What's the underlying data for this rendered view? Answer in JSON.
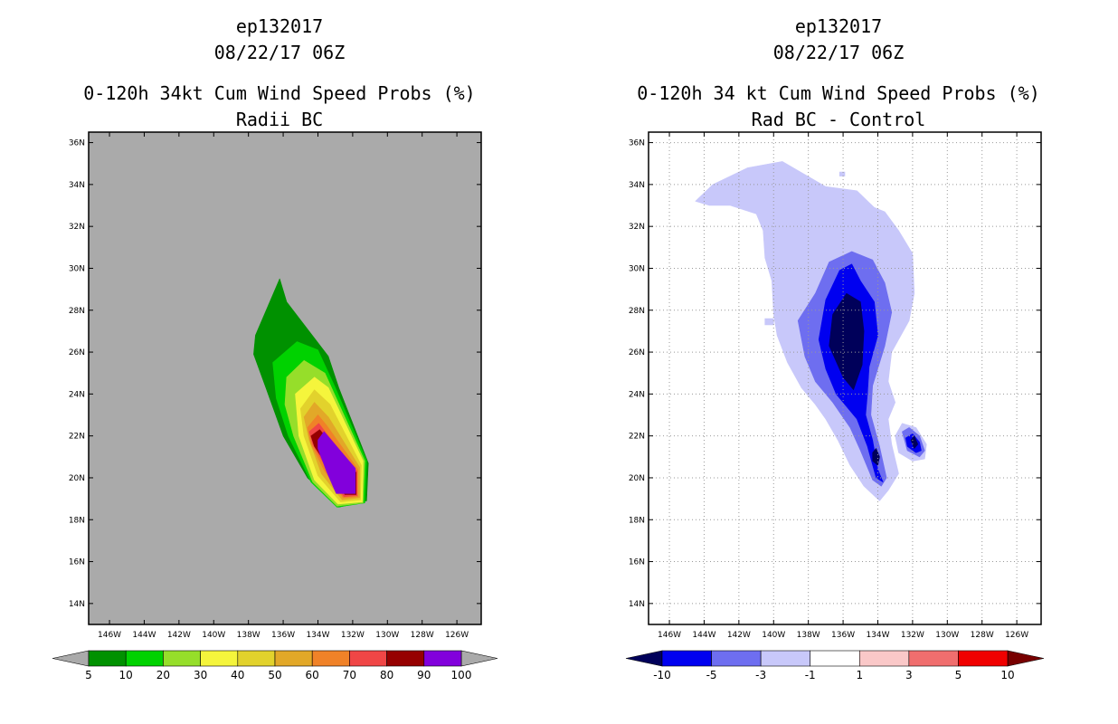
{
  "chart_data": [
    {
      "type": "heatmap",
      "id": "left",
      "title_lines": [
        "ep132017",
        "08/22/17 06Z",
        "0-120h 34kt Cum Wind Speed Probs (%)",
        "Radii BC"
      ],
      "x_ticks": [
        "146W",
        "144W",
        "142W",
        "140W",
        "138W",
        "136W",
        "134W",
        "132W",
        "130W",
        "128W",
        "126W"
      ],
      "x_tick_values": [
        -146,
        -144,
        -142,
        -140,
        -138,
        -136,
        -134,
        -132,
        -130,
        -128,
        -126
      ],
      "y_ticks": [
        "36N",
        "34N",
        "32N",
        "30N",
        "28N",
        "26N",
        "24N",
        "22N",
        "20N",
        "18N",
        "16N",
        "14N"
      ],
      "y_tick_values": [
        36,
        34,
        32,
        30,
        28,
        26,
        24,
        22,
        20,
        18,
        16,
        14
      ],
      "xlim": [
        -147.2,
        -124.6
      ],
      "ylim": [
        13.0,
        36.5
      ],
      "grid": false,
      "background_color": "#aaaaaa",
      "colorbar": {
        "labels": [
          "5",
          "10",
          "20",
          "30",
          "40",
          "50",
          "60",
          "70",
          "80",
          "90",
          "100"
        ],
        "colors": [
          "#009100",
          "#00d200",
          "#96de2a",
          "#f5f53c",
          "#e2d22c",
          "#e2a828",
          "#f08228",
          "#f04646",
          "#960000",
          "#8200dc"
        ],
        "end_color": "#aaaaaa"
      },
      "contours": [
        {
          "level": 5,
          "color": "#009100",
          "points": [
            [
              -137.6,
              26.8
            ],
            [
              -136.2,
              29.5
            ],
            [
              -135.8,
              28.4
            ],
            [
              -133.4,
              25.8
            ],
            [
              -132.8,
              24.3
            ],
            [
              -131.1,
              20.7
            ],
            [
              -131.2,
              18.9
            ],
            [
              -132.8,
              18.6
            ],
            [
              -134.6,
              20.0
            ],
            [
              -136.0,
              22.0
            ],
            [
              -137.0,
              24.3
            ],
            [
              -137.7,
              25.9
            ]
          ]
        },
        {
          "level": 10,
          "color": "#00d200",
          "points": [
            [
              -136.6,
              25.5
            ],
            [
              -135.2,
              26.5
            ],
            [
              -134.0,
              26.1
            ],
            [
              -133.0,
              24.3
            ],
            [
              -131.2,
              20.8
            ],
            [
              -131.3,
              18.8
            ],
            [
              -132.9,
              18.6
            ],
            [
              -134.4,
              19.8
            ],
            [
              -135.7,
              22.0
            ],
            [
              -136.4,
              23.8
            ]
          ]
        },
        {
          "level": 20,
          "color": "#96de2a",
          "points": [
            [
              -135.8,
              24.8
            ],
            [
              -134.8,
              25.6
            ],
            [
              -133.6,
              25.0
            ],
            [
              -131.3,
              20.8
            ],
            [
              -131.4,
              18.8
            ],
            [
              -132.9,
              18.65
            ],
            [
              -134.3,
              19.8
            ],
            [
              -135.4,
              22.0
            ],
            [
              -135.9,
              23.5
            ]
          ]
        },
        {
          "level": 30,
          "color": "#f5f53c",
          "points": [
            [
              -135.3,
              24.0
            ],
            [
              -134.2,
              24.8
            ],
            [
              -133.4,
              24.3
            ],
            [
              -131.4,
              20.8
            ],
            [
              -131.45,
              18.85
            ],
            [
              -132.85,
              18.75
            ],
            [
              -134.2,
              19.9
            ],
            [
              -135.1,
              22.0
            ]
          ]
        },
        {
          "level": 40,
          "color": "#e2d22c",
          "points": [
            [
              -135.0,
              23.3
            ],
            [
              -134.2,
              24.2
            ],
            [
              -133.3,
              23.5
            ],
            [
              -131.5,
              20.6
            ],
            [
              -131.55,
              18.95
            ],
            [
              -132.7,
              18.85
            ],
            [
              -134.0,
              20.1
            ],
            [
              -134.8,
              22.0
            ]
          ]
        },
        {
          "level": 50,
          "color": "#e2a828",
          "points": [
            [
              -134.8,
              22.9
            ],
            [
              -134.2,
              23.6
            ],
            [
              -133.4,
              22.9
            ],
            [
              -131.6,
              20.5
            ],
            [
              -131.6,
              19.05
            ],
            [
              -132.6,
              18.95
            ],
            [
              -133.8,
              20.2
            ],
            [
              -134.5,
              21.8
            ]
          ]
        },
        {
          "level": 60,
          "color": "#f08228",
          "points": [
            [
              -134.6,
              22.4
            ],
            [
              -134.0,
              23.0
            ],
            [
              -133.5,
              22.5
            ],
            [
              -131.7,
              20.4
            ],
            [
              -131.7,
              19.1
            ],
            [
              -132.55,
              19.05
            ],
            [
              -133.6,
              20.3
            ],
            [
              -134.4,
              21.6
            ]
          ]
        },
        {
          "level": 70,
          "color": "#f04646",
          "points": [
            [
              -134.5,
              22.2
            ],
            [
              -133.95,
              22.6
            ],
            [
              -133.5,
              22.1
            ],
            [
              -131.75,
              20.3
            ],
            [
              -131.75,
              19.15
            ],
            [
              -132.5,
              19.1
            ],
            [
              -133.4,
              20.3
            ],
            [
              -134.3,
              21.6
            ]
          ]
        },
        {
          "level": 80,
          "color": "#960000",
          "points": [
            [
              -134.4,
              22.0
            ],
            [
              -133.9,
              22.3
            ],
            [
              -133.5,
              21.9
            ],
            [
              -131.8,
              20.25
            ],
            [
              -131.8,
              19.2
            ],
            [
              -132.45,
              19.2
            ],
            [
              -133.3,
              20.4
            ],
            [
              -134.2,
              21.5
            ]
          ]
        },
        {
          "level": 90,
          "color": "#8200dc",
          "points": [
            [
              -134.0,
              21.8
            ],
            [
              -133.65,
              22.2
            ],
            [
              -131.85,
              20.45
            ],
            [
              -131.85,
              19.25
            ],
            [
              -132.95,
              19.25
            ],
            [
              -133.5,
              20.3
            ],
            [
              -134.0,
              21.4
            ]
          ]
        }
      ]
    },
    {
      "type": "heatmap",
      "id": "right",
      "title_lines": [
        "ep132017",
        "08/22/17 06Z",
        "0-120h 34 kt Cum Wind Speed Probs (%)",
        "Rad BC - Control"
      ],
      "x_ticks": [
        "146W",
        "144W",
        "142W",
        "140W",
        "138W",
        "136W",
        "134W",
        "132W",
        "130W",
        "128W",
        "126W"
      ],
      "x_tick_values": [
        -146,
        -144,
        -142,
        -140,
        -138,
        -136,
        -134,
        -132,
        -130,
        -128,
        -126
      ],
      "y_ticks": [
        "36N",
        "34N",
        "32N",
        "30N",
        "28N",
        "26N",
        "24N",
        "22N",
        "20N",
        "18N",
        "16N",
        "14N"
      ],
      "y_tick_values": [
        36,
        34,
        32,
        30,
        28,
        26,
        24,
        22,
        20,
        18,
        16,
        14
      ],
      "xlim": [
        -147.2,
        -124.6
      ],
      "ylim": [
        13.0,
        36.5
      ],
      "grid": true,
      "background_color": "#ffffff",
      "colorbar": {
        "labels": [
          "-10",
          "-5",
          "-3",
          "-1",
          "1",
          "3",
          "5",
          "10"
        ],
        "colors": [
          "#0000f0",
          "#6e6ef0",
          "#c8c8fa",
          "#ffffff",
          "#fac8c8",
          "#f06e6e",
          "#f00000"
        ],
        "end_colors": [
          "#00005a",
          "#780000"
        ]
      },
      "contours": [
        {
          "level": -1,
          "color": "#c8c8fa",
          "points": [
            [
              -144.5,
              33.2
            ],
            [
              -143.5,
              34.0
            ],
            [
              -141.5,
              34.8
            ],
            [
              -139.5,
              35.1
            ],
            [
              -137.0,
              33.9
            ],
            [
              -135.2,
              33.7
            ],
            [
              -134.2,
              32.9
            ],
            [
              -133.6,
              32.7
            ],
            [
              -132.8,
              31.8
            ],
            [
              -132.0,
              30.7
            ],
            [
              -131.9,
              28.8
            ],
            [
              -132.2,
              27.5
            ],
            [
              -133.2,
              26.0
            ],
            [
              -133.4,
              24.6
            ],
            [
              -133.0,
              23.6
            ],
            [
              -133.4,
              22.8
            ],
            [
              -133.2,
              21.6
            ],
            [
              -132.8,
              20.2
            ],
            [
              -133.4,
              19.4
            ],
            [
              -133.9,
              18.9
            ],
            [
              -134.8,
              19.6
            ],
            [
              -135.6,
              20.6
            ],
            [
              -136.3,
              21.8
            ],
            [
              -137.0,
              22.8
            ],
            [
              -137.6,
              23.5
            ],
            [
              -138.4,
              24.3
            ],
            [
              -139.2,
              25.5
            ],
            [
              -139.8,
              26.8
            ],
            [
              -140.0,
              27.8
            ],
            [
              -140.1,
              29.4
            ],
            [
              -140.5,
              30.5
            ],
            [
              -140.6,
              31.8
            ],
            [
              -141.0,
              32.6
            ],
            [
              -142.5,
              33.0
            ],
            [
              -143.7,
              33.0
            ]
          ]
        },
        {
          "level": -1,
          "color": "#c8c8fa",
          "points": [
            [
              -133.0,
              22.0
            ],
            [
              -132.6,
              22.6
            ],
            [
              -131.8,
              22.4
            ],
            [
              -131.2,
              21.6
            ],
            [
              -131.3,
              20.9
            ],
            [
              -132.0,
              20.8
            ],
            [
              -132.8,
              21.2
            ]
          ]
        },
        {
          "level": -3,
          "color": "#6e6ef0",
          "points": [
            [
              -137.6,
              28.8
            ],
            [
              -136.8,
              30.3
            ],
            [
              -135.5,
              30.8
            ],
            [
              -134.3,
              30.4
            ],
            [
              -133.6,
              29.3
            ],
            [
              -133.2,
              27.9
            ],
            [
              -133.6,
              26.3
            ],
            [
              -134.3,
              24.4
            ],
            [
              -134.4,
              23.0
            ],
            [
              -133.9,
              21.5
            ],
            [
              -133.5,
              20.0
            ],
            [
              -133.8,
              19.6
            ],
            [
              -134.3,
              19.9
            ],
            [
              -135.0,
              21.3
            ],
            [
              -135.6,
              22.4
            ],
            [
              -136.6,
              23.6
            ],
            [
              -137.6,
              24.6
            ],
            [
              -138.2,
              25.8
            ],
            [
              -138.6,
              27.5
            ]
          ]
        },
        {
          "level": -3,
          "color": "#6e6ef0",
          "points": [
            [
              -132.6,
              22.2
            ],
            [
              -132.2,
              22.4
            ],
            [
              -131.6,
              22.0
            ],
            [
              -131.3,
              21.3
            ],
            [
              -131.6,
              21.0
            ],
            [
              -132.3,
              21.3
            ]
          ]
        },
        {
          "level": -5,
          "color": "#0000f0",
          "points": [
            [
              -137.0,
              28.5
            ],
            [
              -136.2,
              29.9
            ],
            [
              -135.5,
              30.2
            ],
            [
              -135.0,
              29.4
            ],
            [
              -134.2,
              28.4
            ],
            [
              -134.0,
              26.8
            ],
            [
              -134.5,
              25.3
            ],
            [
              -134.6,
              24.0
            ],
            [
              -134.7,
              23.0
            ],
            [
              -134.3,
              21.8
            ],
            [
              -134.0,
              20.4
            ],
            [
              -133.7,
              19.8
            ],
            [
              -134.1,
              20.0
            ],
            [
              -134.6,
              21.5
            ],
            [
              -135.2,
              22.8
            ],
            [
              -136.4,
              24.0
            ],
            [
              -137.0,
              25.2
            ],
            [
              -137.4,
              26.6
            ]
          ]
        },
        {
          "level": -5,
          "color": "#0000f0",
          "points": [
            [
              -132.4,
              21.9
            ],
            [
              -132.0,
              22.1
            ],
            [
              -131.6,
              21.7
            ],
            [
              -131.5,
              21.3
            ],
            [
              -131.8,
              21.2
            ],
            [
              -132.3,
              21.5
            ]
          ]
        },
        {
          "level": -10,
          "color": "#00005a",
          "points": [
            [
              -136.6,
              27.8
            ],
            [
              -135.8,
              28.8
            ],
            [
              -135.0,
              28.4
            ],
            [
              -134.8,
              27.0
            ],
            [
              -134.9,
              25.4
            ],
            [
              -135.4,
              24.2
            ],
            [
              -136.0,
              24.8
            ],
            [
              -136.8,
              26.3
            ]
          ]
        },
        {
          "level": -10,
          "color": "#00005a",
          "points": [
            [
              -134.3,
              21.2
            ],
            [
              -134.1,
              21.4
            ],
            [
              -133.9,
              21.0
            ],
            [
              -134.0,
              20.6
            ],
            [
              -134.3,
              20.8
            ]
          ]
        },
        {
          "level": -10,
          "color": "#00005a",
          "points": [
            [
              -132.1,
              21.8
            ],
            [
              -131.9,
              22.0
            ],
            [
              -131.7,
              21.6
            ],
            [
              -131.9,
              21.4
            ]
          ]
        },
        {
          "level": -1,
          "color": "#c8c8fa",
          "points": [
            [
              -140.5,
              27.6
            ],
            [
              -140.0,
              27.6
            ],
            [
              -140.0,
              27.3
            ],
            [
              -140.5,
              27.3
            ]
          ]
        },
        {
          "level": -1,
          "color": "#c8c8fa",
          "points": [
            [
              -136.2,
              34.6
            ],
            [
              -135.9,
              34.6
            ],
            [
              -135.9,
              34.4
            ],
            [
              -136.2,
              34.4
            ]
          ]
        }
      ]
    }
  ]
}
